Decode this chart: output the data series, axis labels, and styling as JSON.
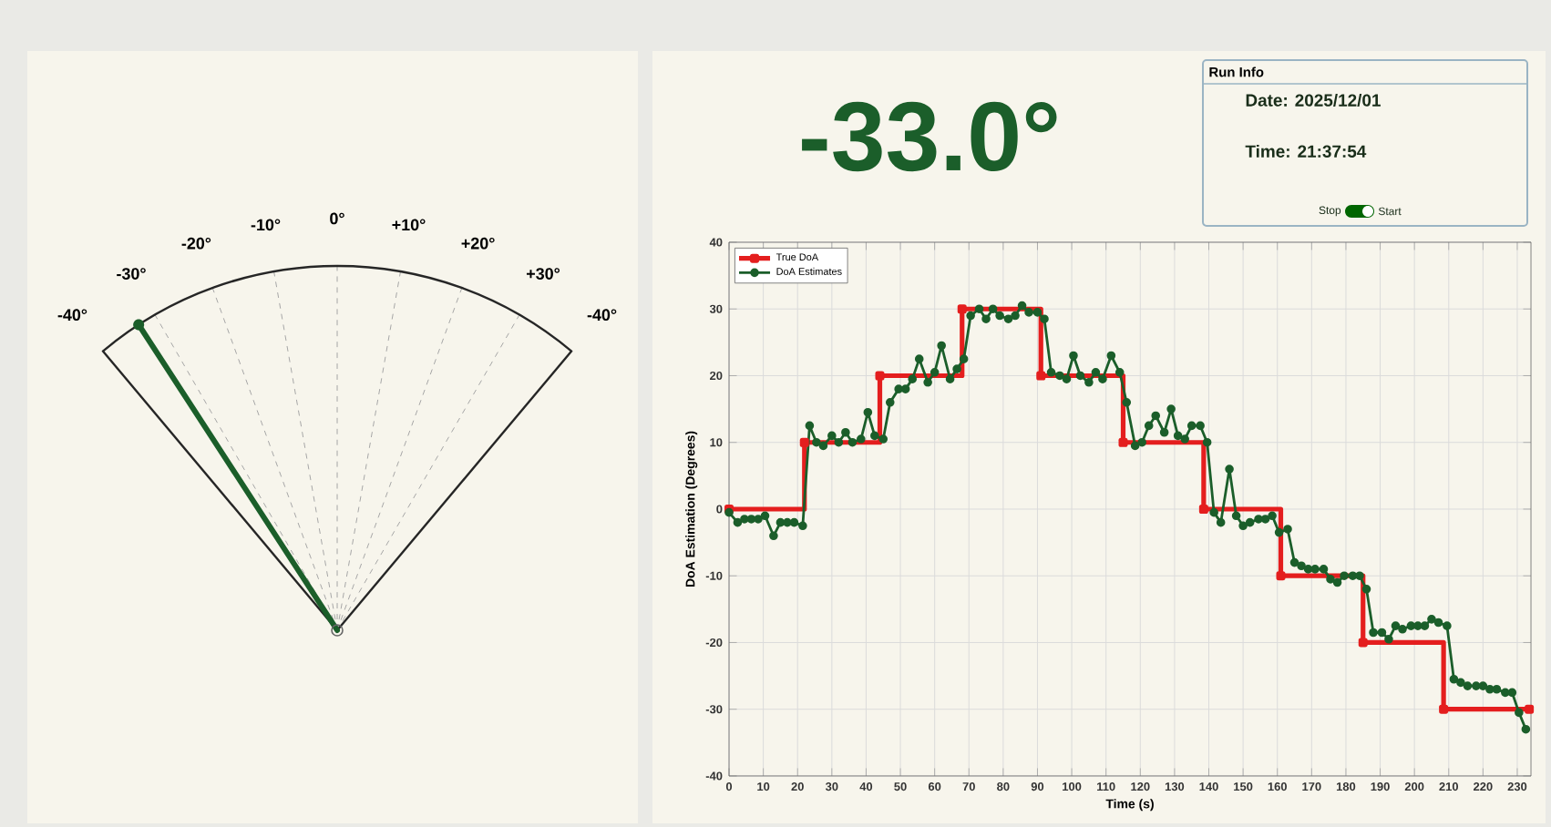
{
  "chart_data": [
    {
      "type": "other",
      "annotations": [
        "-40°",
        "-30°",
        "-20°",
        "-10°",
        "0°",
        "+10°",
        "+20°",
        "+30°",
        "-40°"
      ],
      "values": [
        -33.0
      ],
      "value_labels": [
        "-33.0°"
      ],
      "color": "#1b5e2a"
    },
    {
      "type": "line",
      "xlabel": "Time (s)",
      "ylabel": "DoA Estimation (Degrees)",
      "xlim": [
        0,
        234
      ],
      "ylim": [
        -40,
        40
      ],
      "xticks": [
        0,
        10,
        20,
        30,
        40,
        50,
        60,
        70,
        80,
        90,
        100,
        110,
        120,
        130,
        140,
        150,
        160,
        170,
        180,
        190,
        200,
        210,
        220,
        230
      ],
      "yticks": [
        -40,
        -30,
        -20,
        -10,
        0,
        10,
        20,
        30,
        40
      ],
      "grid": true,
      "legend": "top left",
      "marker": "circle",
      "series": [
        {
          "name": "True DoA",
          "type": "step",
          "color": "#e41e1e",
          "marker": "square",
          "x": [
            0,
            22,
            44,
            68,
            91,
            115,
            138.5,
            161,
            185,
            208.5,
            233.5
          ],
          "values": [
            0,
            10,
            20,
            30,
            20,
            10,
            0,
            -10,
            -20,
            -30,
            -30
          ]
        },
        {
          "name": "DoA Estimates",
          "color": "#1b5e2a",
          "x": [
            0,
            2.5,
            4.5,
            6.5,
            8.5,
            10.5,
            13,
            15,
            17,
            19,
            21.5,
            23.5,
            25.5,
            27.5,
            30,
            32,
            34,
            36,
            38.5,
            40.5,
            42.5,
            45,
            47,
            49.5,
            51.5,
            53.5,
            55.5,
            58,
            60,
            62,
            64.5,
            66.5,
            68.5,
            70.5,
            73,
            75,
            77,
            79,
            81.5,
            83.5,
            85.5,
            87.5,
            90,
            92,
            94,
            96.5,
            98.5,
            100.5,
            102.5,
            105,
            107,
            109,
            111.5,
            114,
            116,
            118.5,
            120.5,
            122.5,
            124.5,
            127,
            129,
            131,
            133,
            135,
            137.5,
            139.5,
            141.5,
            143.5,
            146,
            148,
            150,
            152,
            154.5,
            156.5,
            158.5,
            160.5,
            163,
            165,
            167,
            169,
            171,
            173.5,
            175.5,
            177.5,
            179.5,
            182,
            184,
            186,
            188,
            190.5,
            192.5,
            194.5,
            196.5,
            199,
            201,
            203,
            205,
            207,
            209.5,
            211.5,
            213.5,
            215.5,
            218,
            220,
            222,
            224,
            226.5,
            228.5,
            230.5,
            232.5
          ],
          "values": [
            -0.5,
            -2,
            -1.5,
            -1.5,
            -1.5,
            -1,
            -4,
            -2,
            -2,
            -2,
            -2.5,
            12.5,
            10,
            9.5,
            11,
            10,
            11.5,
            10,
            10.5,
            14.5,
            11,
            10.5,
            16,
            18,
            18,
            19.5,
            22.5,
            19,
            20.5,
            24.5,
            19.5,
            21,
            22.5,
            29,
            30,
            28.5,
            30,
            29,
            28.5,
            29,
            30.5,
            29.5,
            29.5,
            28.5,
            20.5,
            20,
            19.5,
            23,
            20,
            19,
            20.5,
            19.5,
            23,
            20.5,
            16,
            9.5,
            10,
            12.5,
            14,
            11.5,
            15,
            11,
            10.5,
            12.5,
            12.5,
            10,
            -0.5,
            -2,
            6,
            -1,
            -2.5,
            -2,
            -1.5,
            -1.5,
            -1,
            -3.5,
            -3,
            -8,
            -8.5,
            -9,
            -9,
            -9,
            -10.5,
            -11,
            -10,
            -10,
            -10,
            -12,
            -18.5,
            -18.5,
            -19.5,
            -17.5,
            -18,
            -17.5,
            -17.5,
            -17.5,
            -16.5,
            -17,
            -17.5,
            -25.5,
            -26,
            -26.5,
            -26.5,
            -26.5,
            -27,
            -27,
            -27.5,
            -27.5,
            -30.5,
            -33
          ]
        }
      ]
    },
    {
      "type": "other",
      "title": "Run Info",
      "annotations": [
        "Date: 2025/12/01",
        "Time: 21:37:54",
        "Stop",
        "Start"
      ]
    }
  ]
}
